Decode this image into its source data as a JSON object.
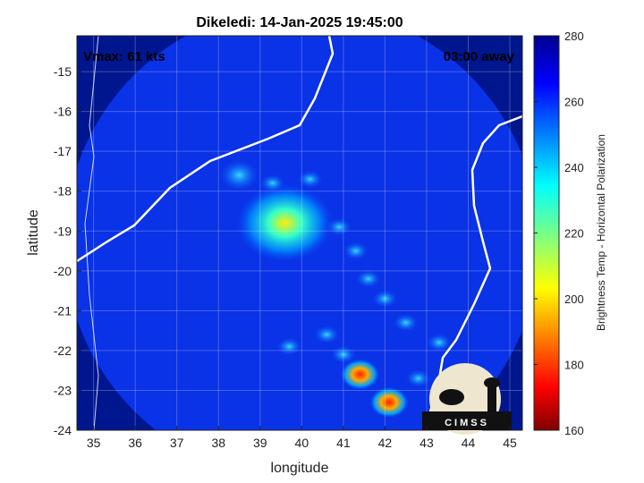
{
  "chart_data": {
    "type": "heatmap",
    "title": "Dikeledi: 14-Jan-2025 19:45:00",
    "xlabel": "longitude",
    "ylabel": "latitude",
    "xlim": [
      34.6,
      45.3
    ],
    "ylim": [
      -24,
      -14.1
    ],
    "xticks": [
      "35",
      "36",
      "37",
      "38",
      "39",
      "40",
      "41",
      "42",
      "43",
      "44",
      "45"
    ],
    "yticks": [
      "-15",
      "-16",
      "-17",
      "-18",
      "-19",
      "-20",
      "-21",
      "-22",
      "-23",
      "-24"
    ],
    "colorbar": {
      "label": "Brightness Temp - Horizontal Polarization",
      "range": [
        160,
        280
      ],
      "ticks": [
        "280",
        "260",
        "240",
        "220",
        "200",
        "180",
        "160"
      ],
      "colormap": "jet"
    },
    "annotations": {
      "vmax": "Vmax: 61 kts",
      "away": "03:00 away"
    },
    "logo": "CIMSS",
    "grid": true,
    "swath": {
      "center_lon": 40.0,
      "center_lat": -19.3,
      "radius_deg": 5.7
    },
    "features": [
      {
        "name": "cyclone core",
        "lon": 39.6,
        "lat": -18.8,
        "value": 215
      },
      {
        "name": "rainband south",
        "lon": 41.4,
        "lat": -22.6,
        "value": 185
      },
      {
        "name": "rainband southeast",
        "lon": 42.1,
        "lat": -23.3,
        "value": 165
      },
      {
        "name": "cell northwest",
        "lon": 38.5,
        "lat": -17.6,
        "value": 225
      }
    ],
    "background_value": 262,
    "ocean_outside_swath": 275
  }
}
